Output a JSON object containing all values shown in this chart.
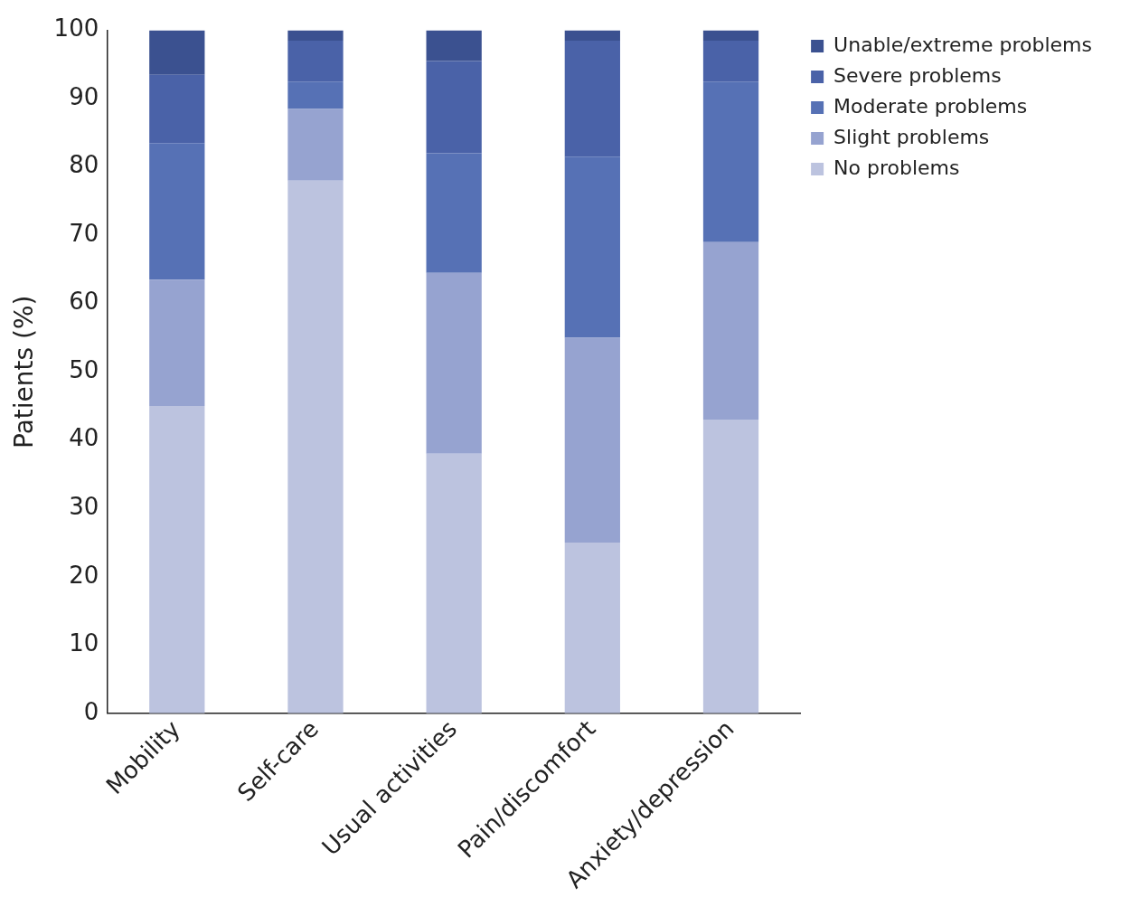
{
  "chart_data": {
    "type": "bar",
    "ylabel": "Patients (%)",
    "stacked": true,
    "categories": [
      "Mobility",
      "Self-care",
      "Usual activities",
      "Pain/discomfort",
      "Anxiety/depression"
    ],
    "series": [
      {
        "name": "No problems",
        "color": "#bcc3df",
        "values": [
          45,
          78,
          38,
          25,
          43
        ]
      },
      {
        "name": "Slight problems",
        "color": "#96a3d0",
        "values": [
          18.5,
          10.5,
          26.5,
          30,
          26
        ]
      },
      {
        "name": "Moderate problems",
        "color": "#5671b5",
        "values": [
          20,
          4,
          17.5,
          26.5,
          23.5
        ]
      },
      {
        "name": "Severe problems",
        "color": "#4a62a8",
        "values": [
          10,
          6,
          13.5,
          17,
          6
        ]
      },
      {
        "name": "Unable/extreme problems",
        "color": "#3b5190",
        "values": [
          6.5,
          1.5,
          4.5,
          1.5,
          1.5
        ]
      }
    ],
    "ylim": [
      0,
      100
    ],
    "yticks": [
      0,
      10,
      20,
      30,
      40,
      50,
      60,
      70,
      80,
      90,
      100
    ],
    "grid": false,
    "legend": "top right"
  }
}
